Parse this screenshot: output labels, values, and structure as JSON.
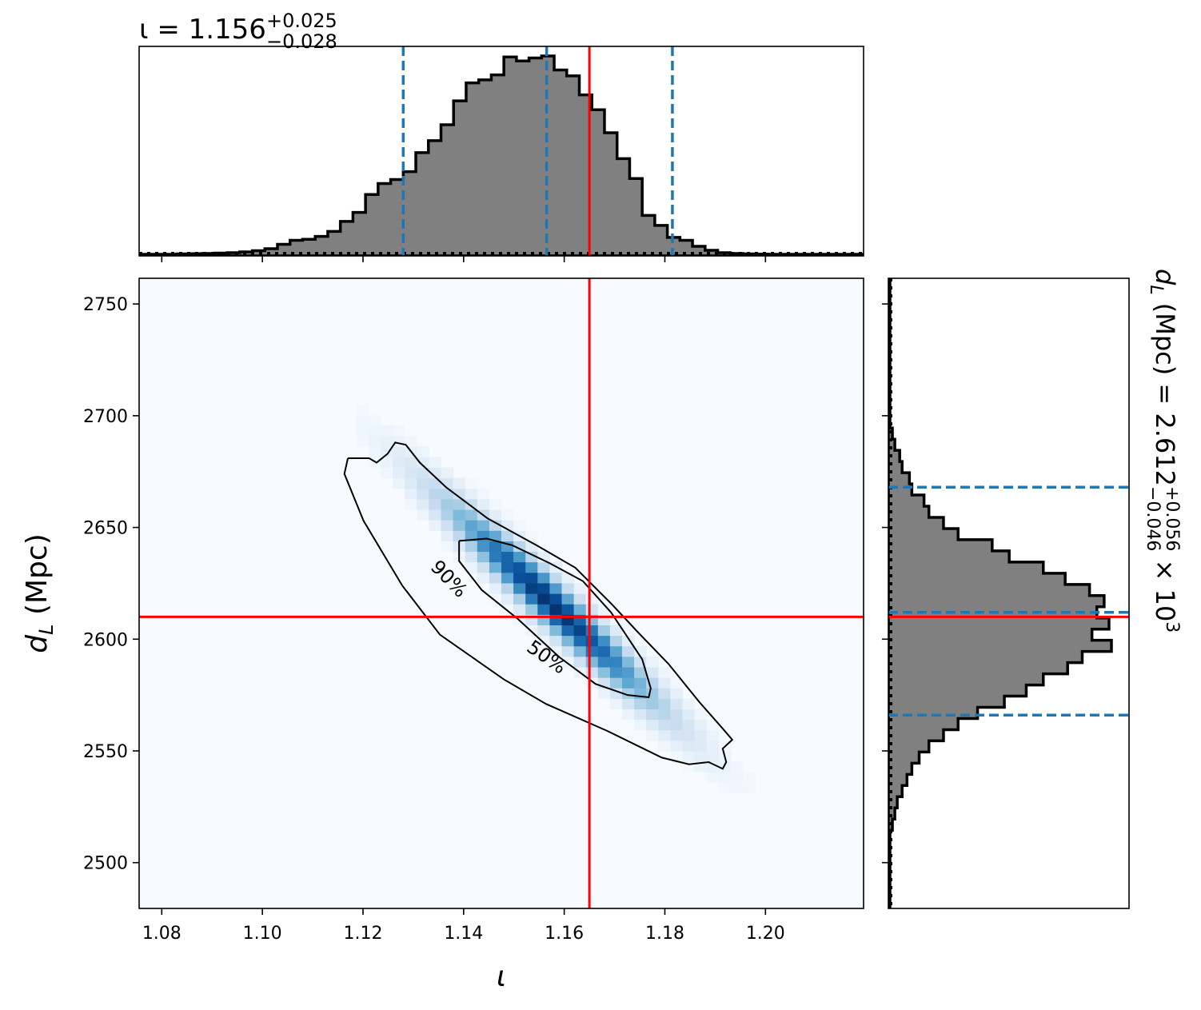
{
  "chart_data": [
    {
      "type": "histogram",
      "panel": "top-marginal",
      "title": {
        "prefix": "ι = 1.156",
        "sup": "+0.025",
        "sub": "−0.028"
      },
      "variable": "ι",
      "xlim": [
        1.0755,
        1.2195
      ],
      "bin_edges_start": 1.0755,
      "bin_width": 0.0025,
      "heights": [
        0,
        0,
        0,
        0.2,
        0.3,
        0.4,
        0.6,
        0.8,
        1.2,
        1.8,
        2.8,
        5.0,
        7.0,
        7.5,
        9.0,
        11.5,
        16.5,
        21.0,
        30.0,
        35.5,
        37.5,
        41.5,
        51.0,
        57.0,
        65.0,
        77.0,
        86.0,
        87.5,
        90.0,
        99.0,
        97.0,
        98.5,
        99.5,
        92.5,
        89.5,
        80.0,
        72.5,
        61.0,
        48.0,
        38.0,
        19.5,
        14.5,
        8.5,
        7.0,
        4.0,
        2.0,
        0.8,
        0.4,
        0.2,
        0.1,
        0,
        0,
        0,
        0,
        0,
        0,
        0,
        0
      ],
      "quantile_lines": [
        1.128,
        1.1565,
        1.1815
      ],
      "truth_line": 1.165,
      "colors": {
        "fill": "#808080",
        "edge": "#000000",
        "quantile": "#1f77b4",
        "truth": "#ff0000"
      }
    },
    {
      "type": "heatmap",
      "panel": "joint",
      "xlabel": "ι",
      "ylabel": "d_L (Mpc)",
      "xlim": [
        1.0755,
        1.2195
      ],
      "ylim": [
        2479.5,
        2761.5
      ],
      "xticks": [
        "1.08",
        "1.10",
        "1.12",
        "1.14",
        "1.16",
        "1.18",
        "1.20"
      ],
      "yticks": [
        "2500",
        "2550",
        "2600",
        "2650",
        "2700",
        "2750"
      ],
      "density": {
        "center": [
          1.1575,
          2616
        ],
        "slope_dL_per_iota": -2100,
        "major_sigma_iota": 0.0135,
        "minor_sigma_dL": 7.5
      },
      "contours": [
        {
          "label": "90%",
          "path": [
            [
              1.117,
              2681
            ],
            [
              1.1212,
              2681
            ],
            [
              1.1227,
              2679
            ],
            [
              1.1249,
              2683
            ],
            [
              1.1264,
              2688
            ],
            [
              1.1285,
              2687
            ],
            [
              1.1313,
              2679
            ],
            [
              1.1365,
              2668
            ],
            [
              1.1448,
              2654
            ],
            [
              1.1545,
              2642
            ],
            [
              1.1622,
              2632
            ],
            [
              1.1693,
              2616
            ],
            [
              1.1747,
              2603
            ],
            [
              1.1807,
              2589
            ],
            [
              1.1868,
              2572
            ],
            [
              1.1915,
              2560
            ],
            [
              1.1934,
              2555
            ],
            [
              1.1915,
              2551
            ],
            [
              1.1922,
              2545
            ],
            [
              1.1915,
              2542
            ],
            [
              1.1887,
              2545
            ],
            [
              1.1848,
              2544
            ],
            [
              1.1794,
              2547
            ],
            [
              1.1685,
              2559
            ],
            [
              1.1564,
              2571
            ],
            [
              1.148,
              2582
            ],
            [
              1.1353,
              2602
            ],
            [
              1.1278,
              2624
            ],
            [
              1.1201,
              2653
            ],
            [
              1.1163,
              2674
            ],
            [
              1.117,
              2681
            ]
          ]
        },
        {
          "label": "50%",
          "path": [
            [
              1.1391,
              2644
            ],
            [
              1.1446,
              2645
            ],
            [
              1.1497,
              2642
            ],
            [
              1.1571,
              2634
            ],
            [
              1.1637,
              2626
            ],
            [
              1.1693,
              2612
            ],
            [
              1.1755,
              2591
            ],
            [
              1.1772,
              2578
            ],
            [
              1.1768,
              2574
            ],
            [
              1.1726,
              2575
            ],
            [
              1.1662,
              2580
            ],
            [
              1.159,
              2592
            ],
            [
              1.1508,
              2609
            ],
            [
              1.1436,
              2622
            ],
            [
              1.1391,
              2635
            ],
            [
              1.1391,
              2644
            ]
          ]
        }
      ],
      "contour_label_positions": [
        {
          "label": "90%",
          "x": 1.1371,
          "y": 2627,
          "angle": 46
        },
        {
          "label": "50%",
          "x": 1.1565,
          "y": 2592,
          "angle": 35
        }
      ],
      "truth": {
        "iota": 1.165,
        "dL": 2610
      },
      "colors": {
        "contour": "#000000",
        "truth": "#ff0000",
        "cmap_low": "#f7fbff",
        "cmap_high": "#08306b"
      }
    },
    {
      "type": "histogram",
      "orientation": "horizontal",
      "panel": "right-marginal",
      "title": {
        "prefix": "d_L (Mpc) = 2.612",
        "sup": "+0.056",
        "sub": "−0.046",
        "suffix": "× 10",
        "exp": "3"
      },
      "variable": "d_L",
      "ylim": [
        2479.5,
        2761.5
      ],
      "bin_edges_start": 2479.5,
      "bin_width": 5,
      "heights": [
        0,
        0,
        0,
        0,
        0,
        0,
        0,
        1,
        2,
        3,
        5,
        7,
        9,
        12,
        16,
        22,
        28,
        36,
        47,
        56,
        63,
        73,
        79,
        91,
        83,
        90,
        85,
        88,
        82,
        72,
        63,
        49,
        42,
        28,
        22,
        16,
        14,
        9,
        8,
        5,
        4,
        2,
        1,
        0,
        0,
        0,
        0,
        0,
        0,
        0,
        0,
        0,
        0,
        0,
        0,
        0,
        0
      ],
      "quantile_lines": [
        2566,
        2612,
        2668
      ],
      "truth_line": 2610,
      "colors": {
        "fill": "#808080",
        "edge": "#000000",
        "quantile": "#1f77b4",
        "truth": "#ff0000"
      }
    }
  ]
}
